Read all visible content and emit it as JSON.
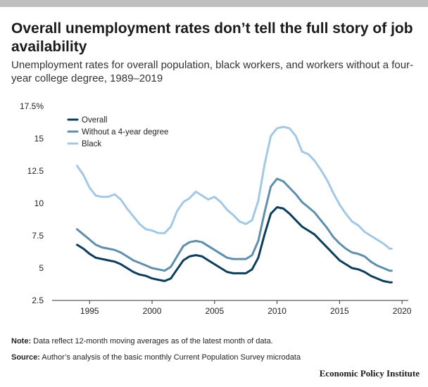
{
  "title": "Overall unemployment rates don’t tell the full story of job availability",
  "subtitle": "Unemployment rates for overall population, black workers, and workers without a four-year college degree, 1989–2019",
  "notes": {
    "note_label": "Note:",
    "note_text": " Data reflect 12-month moving averages as of the latest month of data.",
    "source_label": "Source:",
    "source_text": " Author’s analysis of the basic monthly Current Population Survey microdata"
  },
  "brand": "Economic Policy Institute",
  "chart_data": {
    "type": "line",
    "xlim": [
      1992.0,
      2020.5
    ],
    "ylim": [
      2.5,
      17.5
    ],
    "x_ticks": [
      1995,
      2000,
      2005,
      2010,
      2015,
      2020
    ],
    "x_tick_labels": [
      "1995",
      "2000",
      "2005",
      "2010",
      "2015",
      "2020"
    ],
    "y_ticks": [
      2.5,
      5,
      7.5,
      10,
      12.5,
      15,
      17.5
    ],
    "y_tick_labels": [
      "2.5",
      "5",
      "7.5",
      "10",
      "12.5",
      "15",
      "17.5%"
    ],
    "grid": false,
    "legend_position": "top-left",
    "series": [
      {
        "name": "Overall",
        "color": "#0b3d5c",
        "x": [
          1994.0,
          1994.5,
          1995.0,
          1995.5,
          1996.0,
          1996.5,
          1997.0,
          1997.5,
          1998.0,
          1998.5,
          1999.0,
          1999.5,
          2000.0,
          2000.5,
          2001.0,
          2001.5,
          2002.0,
          2002.5,
          2003.0,
          2003.5,
          2004.0,
          2004.5,
          2005.0,
          2005.5,
          2006.0,
          2006.5,
          2007.0,
          2007.5,
          2008.0,
          2008.5,
          2009.0,
          2009.5,
          2010.0,
          2010.5,
          2011.0,
          2011.5,
          2012.0,
          2012.5,
          2013.0,
          2013.5,
          2014.0,
          2014.5,
          2015.0,
          2015.5,
          2016.0,
          2016.5,
          2017.0,
          2017.5,
          2018.0,
          2018.5,
          2019.0,
          2019.17
        ],
        "values": [
          6.8,
          6.5,
          6.1,
          5.8,
          5.7,
          5.6,
          5.5,
          5.3,
          5.0,
          4.7,
          4.5,
          4.4,
          4.2,
          4.1,
          4.0,
          4.2,
          4.9,
          5.6,
          5.9,
          6.0,
          5.9,
          5.6,
          5.3,
          5.0,
          4.7,
          4.6,
          4.6,
          4.6,
          4.9,
          5.8,
          7.6,
          9.2,
          9.7,
          9.6,
          9.2,
          8.7,
          8.2,
          7.9,
          7.6,
          7.1,
          6.6,
          6.1,
          5.6,
          5.3,
          5.0,
          4.9,
          4.7,
          4.4,
          4.2,
          4.0,
          3.9,
          3.9
        ]
      },
      {
        "name": "Without a 4-year degree",
        "color": "#5e8fad",
        "x": [
          1994.0,
          1994.5,
          1995.0,
          1995.5,
          1996.0,
          1996.5,
          1997.0,
          1997.5,
          1998.0,
          1998.5,
          1999.0,
          1999.5,
          2000.0,
          2000.5,
          2001.0,
          2001.5,
          2002.0,
          2002.5,
          2003.0,
          2003.5,
          2004.0,
          2004.5,
          2005.0,
          2005.5,
          2006.0,
          2006.5,
          2007.0,
          2007.5,
          2008.0,
          2008.5,
          2009.0,
          2009.5,
          2010.0,
          2010.5,
          2011.0,
          2011.5,
          2012.0,
          2012.5,
          2013.0,
          2013.5,
          2014.0,
          2014.5,
          2015.0,
          2015.5,
          2016.0,
          2016.5,
          2017.0,
          2017.5,
          2018.0,
          2018.5,
          2019.0,
          2019.17
        ],
        "values": [
          8.0,
          7.6,
          7.2,
          6.8,
          6.6,
          6.5,
          6.4,
          6.2,
          5.9,
          5.6,
          5.4,
          5.2,
          5.0,
          4.9,
          4.8,
          5.1,
          5.9,
          6.7,
          7.0,
          7.1,
          7.0,
          6.7,
          6.4,
          6.1,
          5.8,
          5.7,
          5.7,
          5.7,
          6.0,
          7.1,
          9.3,
          11.3,
          11.9,
          11.7,
          11.2,
          10.7,
          10.1,
          9.7,
          9.3,
          8.7,
          8.1,
          7.4,
          6.9,
          6.5,
          6.2,
          6.1,
          5.9,
          5.5,
          5.2,
          5.0,
          4.8,
          4.8
        ]
      },
      {
        "name": "Black",
        "color": "#a3c8e5",
        "x": [
          1994.0,
          1994.5,
          1995.0,
          1995.5,
          1996.0,
          1996.5,
          1997.0,
          1997.5,
          1998.0,
          1998.5,
          1999.0,
          1999.5,
          2000.0,
          2000.5,
          2001.0,
          2001.5,
          2002.0,
          2002.5,
          2003.0,
          2003.5,
          2004.0,
          2004.5,
          2005.0,
          2005.5,
          2006.0,
          2006.5,
          2007.0,
          2007.5,
          2008.0,
          2008.5,
          2009.0,
          2009.5,
          2010.0,
          2010.5,
          2011.0,
          2011.5,
          2012.0,
          2012.5,
          2013.0,
          2013.5,
          2014.0,
          2014.5,
          2015.0,
          2015.5,
          2016.0,
          2016.5,
          2017.0,
          2017.5,
          2018.0,
          2018.5,
          2019.0,
          2019.17
        ],
        "values": [
          12.9,
          12.2,
          11.2,
          10.6,
          10.5,
          10.5,
          10.7,
          10.3,
          9.6,
          9.0,
          8.4,
          8.0,
          7.9,
          7.7,
          7.7,
          8.2,
          9.4,
          10.1,
          10.4,
          10.9,
          10.6,
          10.3,
          10.5,
          10.1,
          9.5,
          9.1,
          8.6,
          8.4,
          8.7,
          10.2,
          13.0,
          15.2,
          15.8,
          15.9,
          15.8,
          15.2,
          14.0,
          13.8,
          13.3,
          12.6,
          11.8,
          10.8,
          9.9,
          9.2,
          8.6,
          8.3,
          7.8,
          7.5,
          7.2,
          6.9,
          6.5,
          6.5
        ]
      }
    ]
  }
}
